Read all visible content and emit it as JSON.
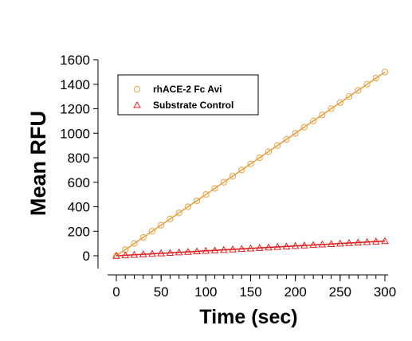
{
  "chart_data": {
    "type": "scatter",
    "xlabel": "Time (sec)",
    "ylabel": "Mean RFU",
    "xlim": [
      0,
      300
    ],
    "ylim": [
      0,
      1600
    ],
    "x_ticks": [
      0,
      50,
      100,
      150,
      200,
      250,
      300
    ],
    "y_ticks": [
      0,
      200,
      400,
      600,
      800,
      1000,
      1200,
      1400,
      1600
    ],
    "grid": false,
    "legend_position": "top-left",
    "series": [
      {
        "name": "rhACE-2 Fc Avi",
        "marker": "circle",
        "color": "#e8a040",
        "fit_line": {
          "slope": 5.0,
          "intercept": 0
        },
        "x": [
          0,
          10,
          20,
          30,
          40,
          50,
          60,
          70,
          80,
          90,
          100,
          110,
          120,
          130,
          140,
          150,
          160,
          170,
          180,
          190,
          200,
          210,
          220,
          230,
          240,
          250,
          260,
          270,
          280,
          290,
          300
        ],
        "y": [
          0,
          50,
          100,
          150,
          200,
          250,
          300,
          350,
          400,
          450,
          500,
          550,
          600,
          650,
          700,
          750,
          800,
          850,
          900,
          950,
          1000,
          1050,
          1100,
          1150,
          1200,
          1250,
          1300,
          1350,
          1400,
          1450,
          1500
        ]
      },
      {
        "name": "Substrate Control",
        "marker": "triangle",
        "color": "#e02020",
        "fit_line": {
          "slope": 0.4,
          "intercept": 0
        },
        "x": [
          0,
          10,
          20,
          30,
          40,
          50,
          60,
          70,
          80,
          90,
          100,
          110,
          120,
          130,
          140,
          150,
          160,
          170,
          180,
          190,
          200,
          210,
          220,
          230,
          240,
          250,
          260,
          270,
          280,
          290,
          300
        ],
        "y": [
          0,
          4,
          8,
          12,
          16,
          20,
          24,
          28,
          32,
          36,
          40,
          44,
          48,
          52,
          56,
          60,
          64,
          68,
          72,
          76,
          80,
          84,
          88,
          92,
          96,
          100,
          104,
          108,
          112,
          116,
          120
        ]
      }
    ]
  }
}
